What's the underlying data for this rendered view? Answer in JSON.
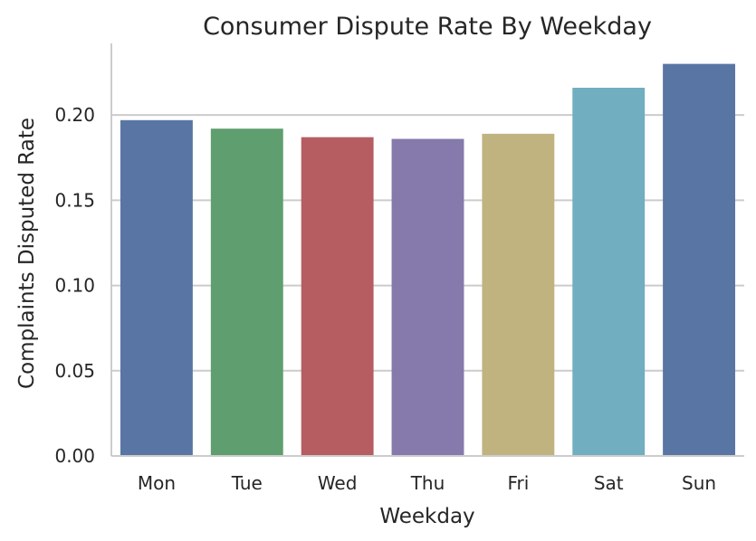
{
  "chart_data": {
    "type": "bar",
    "title": "Consumer Dispute Rate By Weekday",
    "xlabel": "Weekday",
    "ylabel": "Complaints Disputed Rate",
    "categories": [
      "Mon",
      "Tue",
      "Wed",
      "Thu",
      "Fri",
      "Sat",
      "Sun"
    ],
    "values": [
      0.197,
      0.192,
      0.187,
      0.186,
      0.189,
      0.216,
      0.23
    ],
    "colors": [
      "#5975a4",
      "#5f9e6e",
      "#b55d60",
      "#857aab",
      "#c1b37f",
      "#71aec0",
      "#5975a4"
    ],
    "ylim": [
      0,
      0.242
    ],
    "yticks": [
      0.0,
      0.05,
      0.1,
      0.15,
      0.2
    ],
    "ytick_labels": [
      "0.00",
      "0.05",
      "0.10",
      "0.15",
      "0.20"
    ],
    "grid": "horizontal",
    "legend": "none"
  }
}
